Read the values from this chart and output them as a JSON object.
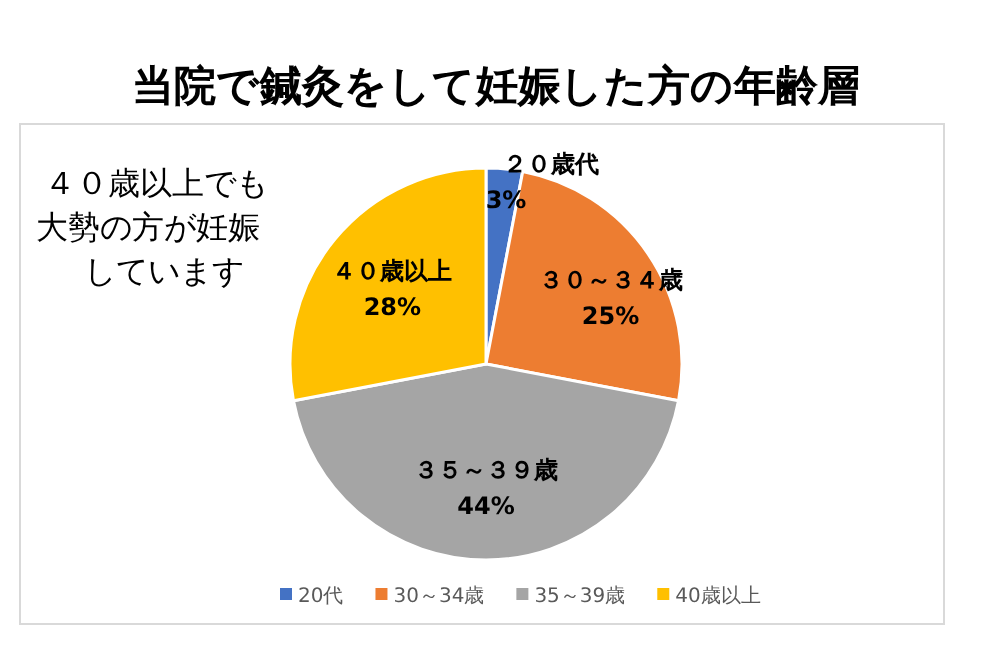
{
  "chart_data": {
    "type": "pie",
    "title": "当院で鍼灸をして妊娠した方の年齢層",
    "categories": [
      "20代",
      "30～34歳",
      "35～39歳",
      "40歳以上"
    ],
    "values": [
      3,
      25,
      44,
      28
    ],
    "colors": [
      "#4472c4",
      "#ed7d31",
      "#a5a5a5",
      "#ffc000"
    ],
    "value_labels": [
      "3%",
      "25%",
      "44%",
      "28%"
    ],
    "legend": "bottom",
    "annotations": [
      "４０歳以上でも大勢の方が妊娠しています",
      {
        "text": "２０歳代",
        "x": "20代"
      },
      {
        "text": "３０～３４歳",
        "x": "30～34歳"
      },
      {
        "text": "３５～３９歳",
        "x": "35～39歳"
      },
      {
        "text": "４０歳以上",
        "x": "40歳以上"
      }
    ]
  }
}
